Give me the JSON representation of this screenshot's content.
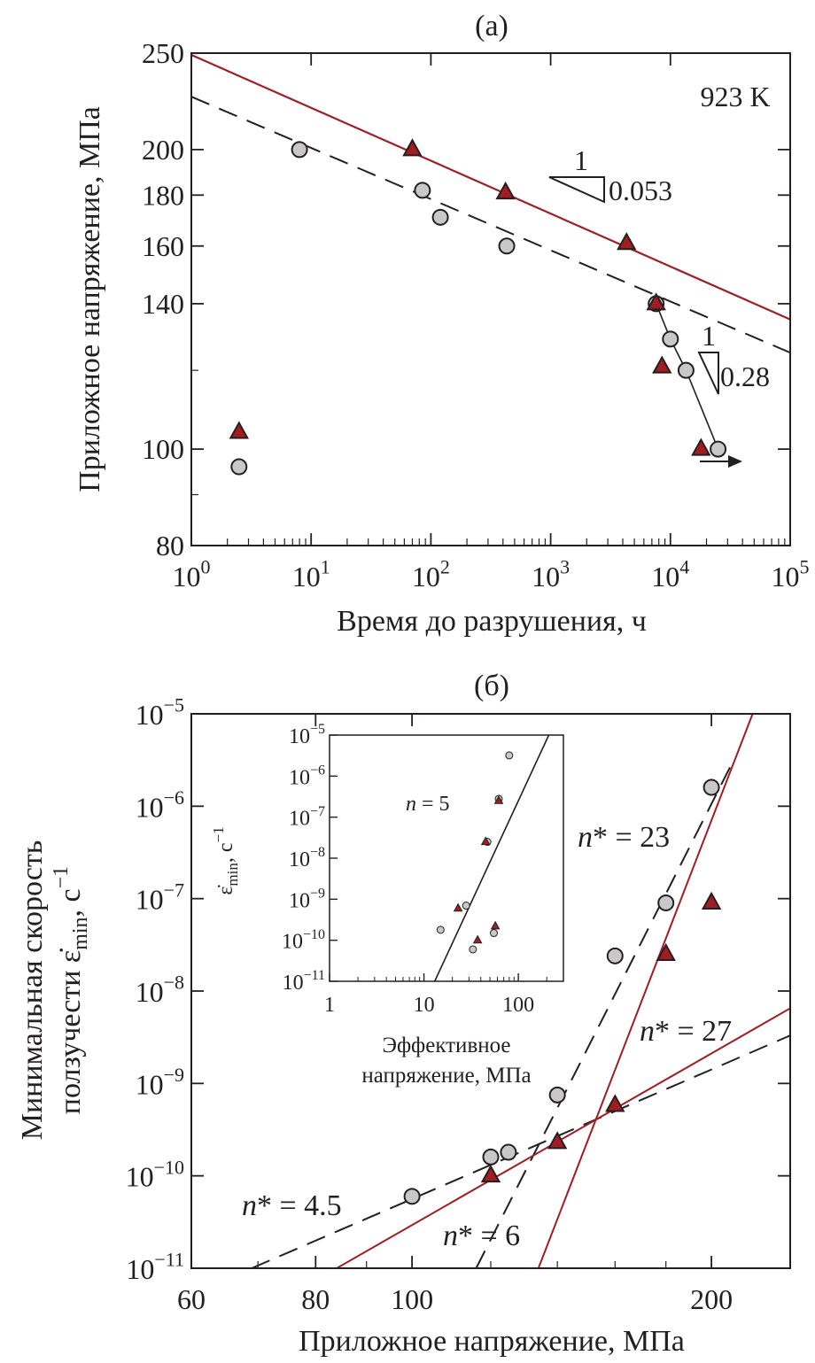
{
  "chart_data": [
    {
      "panel": "(a)",
      "type": "scatter",
      "xscale": "log",
      "yscale": "log",
      "xlim": [
        1,
        100000
      ],
      "ylim": [
        80,
        250
      ],
      "xlabel": "Время до разрушения, ч",
      "ylabel": "Приложное напряжение, МПа",
      "annotation": "923 K",
      "x_ticks": [
        {
          "v": 1,
          "base": "10",
          "exp": "0"
        },
        {
          "v": 10,
          "base": "10",
          "exp": "1"
        },
        {
          "v": 100,
          "base": "10",
          "exp": "2"
        },
        {
          "v": 1000,
          "base": "10",
          "exp": "3"
        },
        {
          "v": 10000,
          "base": "10",
          "exp": "4"
        },
        {
          "v": 100000,
          "base": "10",
          "exp": "5"
        }
      ],
      "y_ticks": [
        {
          "v": 80,
          "label": "80"
        },
        {
          "v": 100,
          "label": "100"
        },
        {
          "v": 140,
          "label": "140"
        },
        {
          "v": 160,
          "label": "160"
        },
        {
          "v": 180,
          "label": "180"
        },
        {
          "v": 200,
          "label": "200"
        },
        {
          "v": 250,
          "label": "250"
        }
      ],
      "series": [
        {
          "marker": "triangle",
          "color": "#a11d21",
          "points": [
            [
              2.5,
              104
            ],
            [
              70,
              200
            ],
            [
              420,
              181
            ],
            [
              4300,
              161
            ],
            [
              7600,
              140
            ],
            [
              8500,
              121
            ],
            [
              18000,
              100
            ]
          ]
        },
        {
          "marker": "circle",
          "color": "#c8c8c8",
          "points": [
            [
              2.5,
              96
            ],
            [
              8,
              200
            ],
            [
              85,
              182
            ],
            [
              120,
              171
            ],
            [
              430,
              160
            ],
            [
              7600,
              140
            ],
            [
              10000,
              129
            ],
            [
              13500,
              120
            ],
            [
              25000,
              100
            ]
          ]
        }
      ],
      "fit_lines": [
        {
          "style": "solid",
          "color": "#a11d21",
          "from": [
            1,
            249
          ],
          "to": [
            100000,
            135
          ]
        },
        {
          "style": "dashed",
          "color": "#231f20",
          "from": [
            1,
            226
          ],
          "to": [
            100000,
            125
          ]
        },
        {
          "style": "thin",
          "color": "#231f20",
          "points": [
            [
              7600,
              140
            ],
            [
              10000,
              129
            ],
            [
              13500,
              120
            ],
            [
              25000,
              100
            ]
          ]
        }
      ],
      "slope_labels": [
        {
          "one": "1",
          "value": "0.053"
        },
        {
          "one": "1",
          "value": "0.28"
        }
      ]
    },
    {
      "panel": "(б)",
      "type": "scatter",
      "xscale": "log",
      "yscale": "log",
      "xlim": [
        60,
        240
      ],
      "ylim": [
        1e-11,
        1e-05
      ],
      "xlabel": "Приложное напряжение, МПа",
      "ylabel_line1": "Минимальная скорость",
      "ylabel_line2": "ползучести ε̇",
      "ylabel_sub": "min",
      "ylabel_unit": ", с",
      "ylabel_unit_exp": "−1",
      "x_ticks": [
        {
          "v": 60,
          "label": "60"
        },
        {
          "v": 80,
          "label": "80"
        },
        {
          "v": 100,
          "label": "100"
        },
        {
          "v": 200,
          "label": "200"
        }
      ],
      "y_ticks": [
        {
          "v": 1e-11,
          "base": "10",
          "exp": "−11"
        },
        {
          "v": 1e-10,
          "base": "10",
          "exp": "−10"
        },
        {
          "v": 1e-09,
          "base": "10",
          "exp": "−9"
        },
        {
          "v": 1e-08,
          "base": "10",
          "exp": "−8"
        },
        {
          "v": 1e-07,
          "base": "10",
          "exp": "−7"
        },
        {
          "v": 1e-06,
          "base": "10",
          "exp": "−6"
        },
        {
          "v": 1e-05,
          "base": "10",
          "exp": "−5"
        }
      ],
      "series": [
        {
          "marker": "circle",
          "color": "#c8c8c8",
          "points": [
            [
              100,
              6e-11
            ],
            [
              120,
              1.6e-10
            ],
            [
              125,
              1.8e-10
            ],
            [
              140,
              7.5e-10
            ],
            [
              160,
              2.4e-08
            ],
            [
              180,
              9e-08
            ],
            [
              200,
              1.6e-06
            ]
          ]
        },
        {
          "marker": "triangle",
          "color": "#a11d21",
          "points": [
            [
              120,
              1e-10
            ],
            [
              140,
              2.3e-10
            ],
            [
              160,
              5.8e-10
            ],
            [
              180,
              2.5e-08
            ],
            [
              200,
              9e-08
            ]
          ]
        }
      ],
      "fit_lines": [
        {
          "style": "dashed",
          "color": "#231f20",
          "label": "n* = 4.5",
          "from": [
            69,
            1e-11
          ],
          "to": [
            240,
            3.3e-09
          ]
        },
        {
          "style": "dashed",
          "color": "#231f20",
          "label": "n* = 23",
          "from": [
            116,
            1e-11
          ],
          "to": [
            211,
            3.3e-06
          ]
        },
        {
          "style": "solid",
          "color": "#a11d21",
          "label": "n* = 6",
          "from": [
            84,
            1e-11
          ],
          "to": [
            240,
            6.5e-09
          ]
        },
        {
          "style": "solid",
          "color": "#a11d21",
          "label": "n* = 27",
          "from": [
            134,
            1e-11
          ],
          "to": [
            220,
            1e-05
          ]
        }
      ],
      "n_labels": [
        "n* = 4.5",
        "n* = 6",
        "n* = 23",
        "n* = 27"
      ],
      "inset": {
        "type": "scatter",
        "xscale": "log",
        "yscale": "log",
        "xlim": [
          1,
          300
        ],
        "ylim": [
          1e-11,
          1e-05
        ],
        "xlabel_line1": "Эффективное",
        "xlabel_line2": "напряжение, МПа",
        "ylabel": "ε̇",
        "ylabel_sub": "min",
        "ylabel_unit": ", с",
        "ylabel_unit_exp": "−1",
        "annotation": "n = 5",
        "x_ticks": [
          {
            "v": 1,
            "label": "1"
          },
          {
            "v": 10,
            "label": "10"
          },
          {
            "v": 100,
            "label": "100"
          }
        ],
        "y_ticks": [
          {
            "v": 1e-11,
            "base": "10",
            "exp": "−11"
          },
          {
            "v": 1e-10,
            "base": "10",
            "exp": "−10"
          },
          {
            "v": 1e-09,
            "base": "10",
            "exp": "−9"
          },
          {
            "v": 1e-08,
            "base": "10",
            "exp": "−8"
          },
          {
            "v": 1e-07,
            "base": "10",
            "exp": "−7"
          },
          {
            "v": 1e-06,
            "base": "10",
            "exp": "−6"
          },
          {
            "v": 1e-05,
            "base": "10",
            "exp": "−5"
          }
        ],
        "series": [
          {
            "marker": "circle",
            "color": "#c8c8c8",
            "points": [
              [
                15,
                1.8e-10
              ],
              [
                28,
                7e-10
              ],
              [
                33,
                6e-11
              ],
              [
                47,
                2.5e-08
              ],
              [
                55,
                1.5e-10
              ],
              [
                62,
                2.8e-07
              ],
              [
                80,
                3.2e-06
              ]
            ]
          },
          {
            "marker": "triangle",
            "color": "#a11d21",
            "points": [
              [
                23,
                6e-10
              ],
              [
                37,
                1e-10
              ],
              [
                45,
                2.5e-08
              ],
              [
                57,
                2.2e-10
              ],
              [
                62,
                2.5e-07
              ]
            ]
          }
        ],
        "fit_lines": [
          {
            "style": "solid",
            "color": "#231f20",
            "from": [
              13,
              1e-11
            ],
            "to": [
              210,
              1e-05
            ]
          }
        ]
      }
    }
  ]
}
